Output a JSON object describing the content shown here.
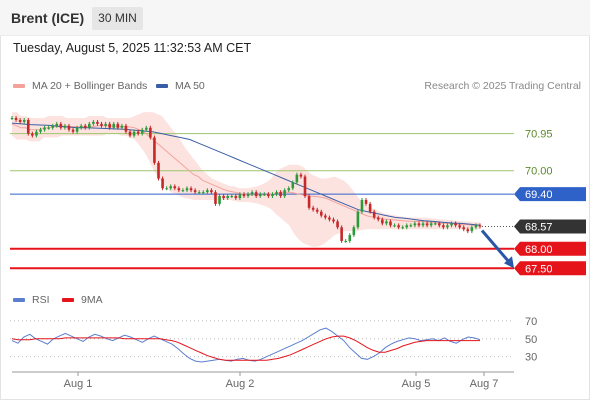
{
  "header": {
    "instrument": "Brent (ICE)",
    "timeframe": "30 MIN",
    "datetime": "Tuesday, August 5, 2025 11:32:53 AM CET"
  },
  "legend": {
    "ma20_label": "MA 20 + Bollinger Bands",
    "ma50_label": "MA 50",
    "copyright": "Research © 2025 Trading Central",
    "rsi_label": "RSI",
    "ma9_label": "9MA"
  },
  "colors": {
    "ma20": "#f4a29a",
    "bollinger_fill": "#fbd9d5",
    "ma50": "#3a5ea6",
    "resistance": "#9cc66b",
    "pivot": "#2f62c9",
    "support": "#e5141b",
    "current_price": "#333333",
    "candle_up": "#2b9a3a",
    "candle_down": "#c62828",
    "rsi": "#5a7fd0",
    "rsi_ma": "#e5141b",
    "arrow": "#2a56a8"
  },
  "chart_data": [
    {
      "type": "line",
      "title": "Brent (ICE)",
      "timeframe": "30 MIN",
      "ylim": [
        67.2,
        71.35
      ],
      "x_tick_labels": [
        "Aug 1",
        "Aug 2",
        "Aug 5",
        "Aug 7"
      ],
      "levels": [
        {
          "value": 70.95,
          "label": "70.95",
          "kind": "resistance"
        },
        {
          "value": 70.0,
          "label": "70.00",
          "kind": "resistance"
        },
        {
          "value": 69.4,
          "label": "69.40",
          "kind": "pivot"
        },
        {
          "value": 68.57,
          "label": "68.57",
          "kind": "current"
        },
        {
          "value": 68.0,
          "label": "68.00",
          "kind": "support"
        },
        {
          "value": 67.5,
          "label": "67.50",
          "kind": "support"
        }
      ],
      "series": [
        {
          "name": "Brent (ICE)",
          "kind": "close",
          "values": [
            71.35,
            71.3,
            71.25,
            71.3,
            70.95,
            70.9,
            71.0,
            71.05,
            71.1,
            71.1,
            71.15,
            71.2,
            71.1,
            71.15,
            71.05,
            71.0,
            71.1,
            71.15,
            71.1,
            71.2,
            71.25,
            71.2,
            71.15,
            71.2,
            71.1,
            71.2,
            71.1,
            71.15,
            71.0,
            70.9,
            71.0,
            70.95,
            71.05,
            71.1,
            70.85,
            70.2,
            69.8,
            69.55,
            69.55,
            69.6,
            69.55,
            69.5,
            69.5,
            69.55,
            69.5,
            69.45,
            69.45,
            69.45,
            69.5,
            69.45,
            69.15,
            69.35,
            69.3,
            69.35,
            69.35,
            69.3,
            69.4,
            69.35,
            69.4,
            69.45,
            69.35,
            69.4,
            69.4,
            69.35,
            69.4,
            69.45,
            69.35,
            69.5,
            69.55,
            69.7,
            69.9,
            69.85,
            69.35,
            69.05,
            69.0,
            68.95,
            68.85,
            68.8,
            68.75,
            68.7,
            68.55,
            68.2,
            68.2,
            68.35,
            68.55,
            68.95,
            69.25,
            69.15,
            68.95,
            68.8,
            68.75,
            68.65,
            68.7,
            68.6,
            68.6,
            68.55,
            68.55,
            68.6,
            68.6,
            68.65,
            68.6,
            68.65,
            68.6,
            68.65,
            68.65,
            68.6,
            68.55,
            68.6,
            68.65,
            68.6,
            68.55,
            68.5,
            68.45,
            68.55,
            68.6,
            68.57
          ]
        },
        {
          "name": "MA 20",
          "kind": "ma20",
          "values": [
            71.2,
            71.15,
            71.1,
            71.1,
            71.05,
            71.05,
            71.05,
            71.1,
            71.1,
            71.12,
            71.13,
            71.14,
            71.14,
            71.13,
            71.13,
            71.12,
            71.12,
            71.13,
            71.13,
            71.15,
            71.15,
            71.15,
            71.14,
            71.14,
            71.13,
            71.13,
            71.12,
            71.1,
            71.05,
            71.0,
            70.9,
            70.8,
            70.7,
            70.6,
            70.5,
            70.4,
            70.3,
            70.2,
            70.1,
            70.0,
            69.9,
            69.85,
            69.75,
            69.7,
            69.65,
            69.6,
            69.55,
            69.5,
            69.47,
            69.45,
            69.42,
            69.4,
            69.38,
            69.38,
            69.38,
            69.38,
            69.38,
            69.4,
            69.42,
            69.45,
            69.45,
            69.45,
            69.43,
            69.4,
            69.38,
            69.36,
            69.35,
            69.34,
            69.32,
            69.3,
            69.25,
            69.2,
            69.15,
            69.1,
            69.05,
            69.0,
            68.95,
            68.9,
            68.85,
            68.82,
            68.8,
            68.78,
            68.76,
            68.75,
            68.74,
            68.73,
            68.72,
            68.71,
            68.7,
            68.7,
            68.7,
            68.69,
            68.68,
            68.67,
            68.66,
            68.65,
            68.65,
            68.64,
            68.63,
            68.62,
            68.62,
            68.61,
            68.6,
            68.6
          ]
        },
        {
          "name": "Bollinger Upper",
          "kind": "bb_upper",
          "values": [
            71.5,
            71.5,
            71.4,
            71.4,
            71.35,
            71.35,
            71.35,
            71.35,
            71.4,
            71.4,
            71.4,
            71.4,
            71.35,
            71.35,
            71.35,
            71.35,
            71.35,
            71.4,
            71.4,
            71.4,
            71.4,
            71.35,
            71.35,
            71.35,
            71.35,
            71.35,
            71.35,
            71.4,
            71.45,
            71.5,
            71.5,
            71.5,
            71.45,
            71.4,
            71.25,
            71.1,
            70.95,
            70.8,
            70.6,
            70.45,
            70.3,
            70.15,
            70.0,
            69.9,
            69.8,
            69.75,
            69.7,
            69.65,
            69.6,
            69.6,
            69.55,
            69.55,
            69.55,
            69.58,
            69.6,
            69.65,
            69.7,
            69.8,
            69.95,
            70.05,
            70.1,
            70.15,
            70.15,
            70.15,
            70.1,
            70.0,
            69.9,
            69.85,
            69.8,
            69.8,
            69.82,
            69.85,
            69.8,
            69.75,
            69.65,
            69.5,
            69.35,
            69.2,
            69.1,
            69.05,
            69.0,
            68.95,
            68.9,
            68.88,
            68.86,
            68.84,
            68.82,
            68.8,
            68.8,
            68.8,
            68.8,
            68.8,
            68.78,
            68.77,
            68.76,
            68.75,
            68.74,
            68.73,
            68.72,
            68.71,
            68.7,
            68.69,
            68.68,
            68.68
          ]
        },
        {
          "name": "Bollinger Lower",
          "kind": "bb_lower",
          "values": [
            70.9,
            70.8,
            70.8,
            70.8,
            70.75,
            70.75,
            70.75,
            70.85,
            70.85,
            70.85,
            70.85,
            70.9,
            70.9,
            70.9,
            70.9,
            70.9,
            70.9,
            70.9,
            70.9,
            70.9,
            70.9,
            70.95,
            70.95,
            70.95,
            70.9,
            70.9,
            70.85,
            70.8,
            70.65,
            70.5,
            70.3,
            70.05,
            69.85,
            69.7,
            69.55,
            69.45,
            69.4,
            69.35,
            69.3,
            69.28,
            69.25,
            69.25,
            69.25,
            69.25,
            69.25,
            69.25,
            69.25,
            69.25,
            69.25,
            69.22,
            69.2,
            69.2,
            69.2,
            69.18,
            69.16,
            69.12,
            69.08,
            69.02,
            68.9,
            68.8,
            68.7,
            68.6,
            68.4,
            68.25,
            68.15,
            68.1,
            68.05,
            68.05,
            68.08,
            68.15,
            68.25,
            68.35,
            68.4,
            68.45,
            68.45,
            68.45,
            68.45,
            68.48,
            68.5,
            68.5,
            68.5,
            68.5,
            68.5,
            68.5,
            68.5,
            68.5,
            68.5,
            68.5,
            68.5,
            68.5,
            68.5,
            68.5,
            68.5,
            68.5,
            68.5,
            68.5,
            68.5,
            68.5,
            68.5,
            68.5,
            68.5,
            68.5,
            68.5,
            68.5
          ]
        },
        {
          "name": "MA 50",
          "kind": "ma50",
          "values": [
            71.22,
            71.2,
            71.18,
            71.17,
            71.16,
            71.14,
            71.12,
            71.1,
            71.1,
            71.09,
            71.08,
            71.07,
            71.06,
            71.04,
            71.02,
            71.0,
            70.95,
            70.9,
            70.85,
            70.8,
            70.7,
            70.6,
            70.5,
            70.4,
            70.3,
            70.2,
            70.1,
            70.0,
            69.9,
            69.8,
            69.7,
            69.6,
            69.5,
            69.4,
            69.3,
            69.2,
            69.1,
            69.0,
            68.95,
            68.9,
            68.85,
            68.8,
            68.78,
            68.75,
            68.72,
            68.7,
            68.68,
            68.66,
            68.65,
            68.63,
            68.6
          ]
        }
      ]
    },
    {
      "type": "line",
      "title": "RSI",
      "ylim": [
        15,
        80
      ],
      "y_ticks": [
        30,
        50,
        70
      ],
      "series": [
        {
          "name": "RSI",
          "values": [
            48,
            45,
            52,
            55,
            50,
            47,
            44,
            50,
            53,
            56,
            53,
            50,
            47,
            52,
            55,
            53,
            50,
            48,
            51,
            54,
            52,
            49,
            46,
            50,
            53,
            50,
            47,
            44,
            39,
            33,
            28,
            25,
            24,
            25,
            26,
            27,
            26,
            25,
            27,
            28,
            26,
            25,
            27,
            30,
            33,
            36,
            39,
            42,
            45,
            48,
            52,
            56,
            60,
            62,
            58,
            53,
            48,
            40,
            34,
            28,
            27,
            30,
            34,
            40,
            44,
            47,
            49,
            51,
            50,
            48,
            49,
            50,
            48,
            51,
            47,
            45,
            49,
            52,
            51,
            49
          ]
        },
        {
          "name": "9MA",
          "values": [
            50,
            49,
            49,
            49,
            50,
            50,
            50,
            50,
            50,
            51,
            51,
            51,
            51,
            51,
            51,
            51,
            51,
            51,
            51,
            50,
            50,
            50,
            50,
            50,
            50,
            50,
            49,
            48,
            46,
            43,
            40,
            37,
            34,
            31,
            29,
            27,
            26,
            26,
            26,
            26,
            26,
            26,
            26,
            26,
            27,
            28,
            30,
            32,
            35,
            38,
            41,
            44,
            47,
            50,
            52,
            53,
            53,
            51,
            48,
            44,
            40,
            37,
            35,
            35,
            37,
            39,
            42,
            44,
            46,
            47,
            48,
            48,
            48,
            48,
            48,
            48,
            48,
            48,
            48,
            48
          ]
        }
      ]
    }
  ]
}
